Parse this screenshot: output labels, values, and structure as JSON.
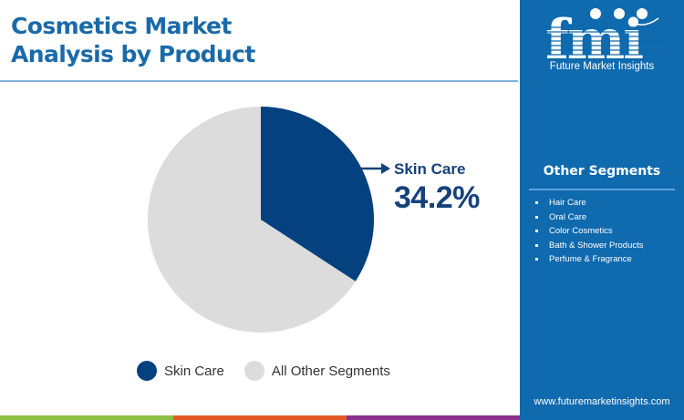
{
  "header": {
    "title_line1": "Cosmetics Market",
    "title_line2": "Analysis by Product"
  },
  "callout": {
    "label": "Skin Care",
    "value": "34.2%"
  },
  "legend": [
    {
      "label": "Skin Care",
      "color": "#05417f"
    },
    {
      "label": "All Other Segments",
      "color": "#dcdcdc"
    }
  ],
  "side_panel": {
    "logo_text": "fmi",
    "logo_subtitle": "Future Market Insights",
    "other_segments_title": "Other Segments",
    "other_segments": [
      "Hair Care",
      "Oral Care",
      "Color Cosmetics",
      "Bath & Shower Products",
      "Perfume & Fragrance"
    ],
    "website": "www.futuremarketinsights.com"
  },
  "colors": {
    "primary": "#05417f",
    "other": "#dcdcdc",
    "title": "#1a6aa9",
    "panel": "#0f6aae",
    "bar_green": "#8cbf45",
    "bar_orange": "#e35a26",
    "bar_purple": "#8a2f8c"
  },
  "chart_data": {
    "type": "pie",
    "title": "Cosmetics Market Analysis by Product",
    "categories": [
      "Skin Care",
      "All Other Segments"
    ],
    "values": [
      34.2,
      65.8
    ],
    "unit": "%",
    "colors": [
      "#05417f",
      "#dcdcdc"
    ],
    "start_angle": "12 o'clock, clockwise",
    "annotations": [
      {
        "target": "Skin Care",
        "text": "Skin Care 34.2%"
      }
    ],
    "legend_position": "bottom"
  }
}
